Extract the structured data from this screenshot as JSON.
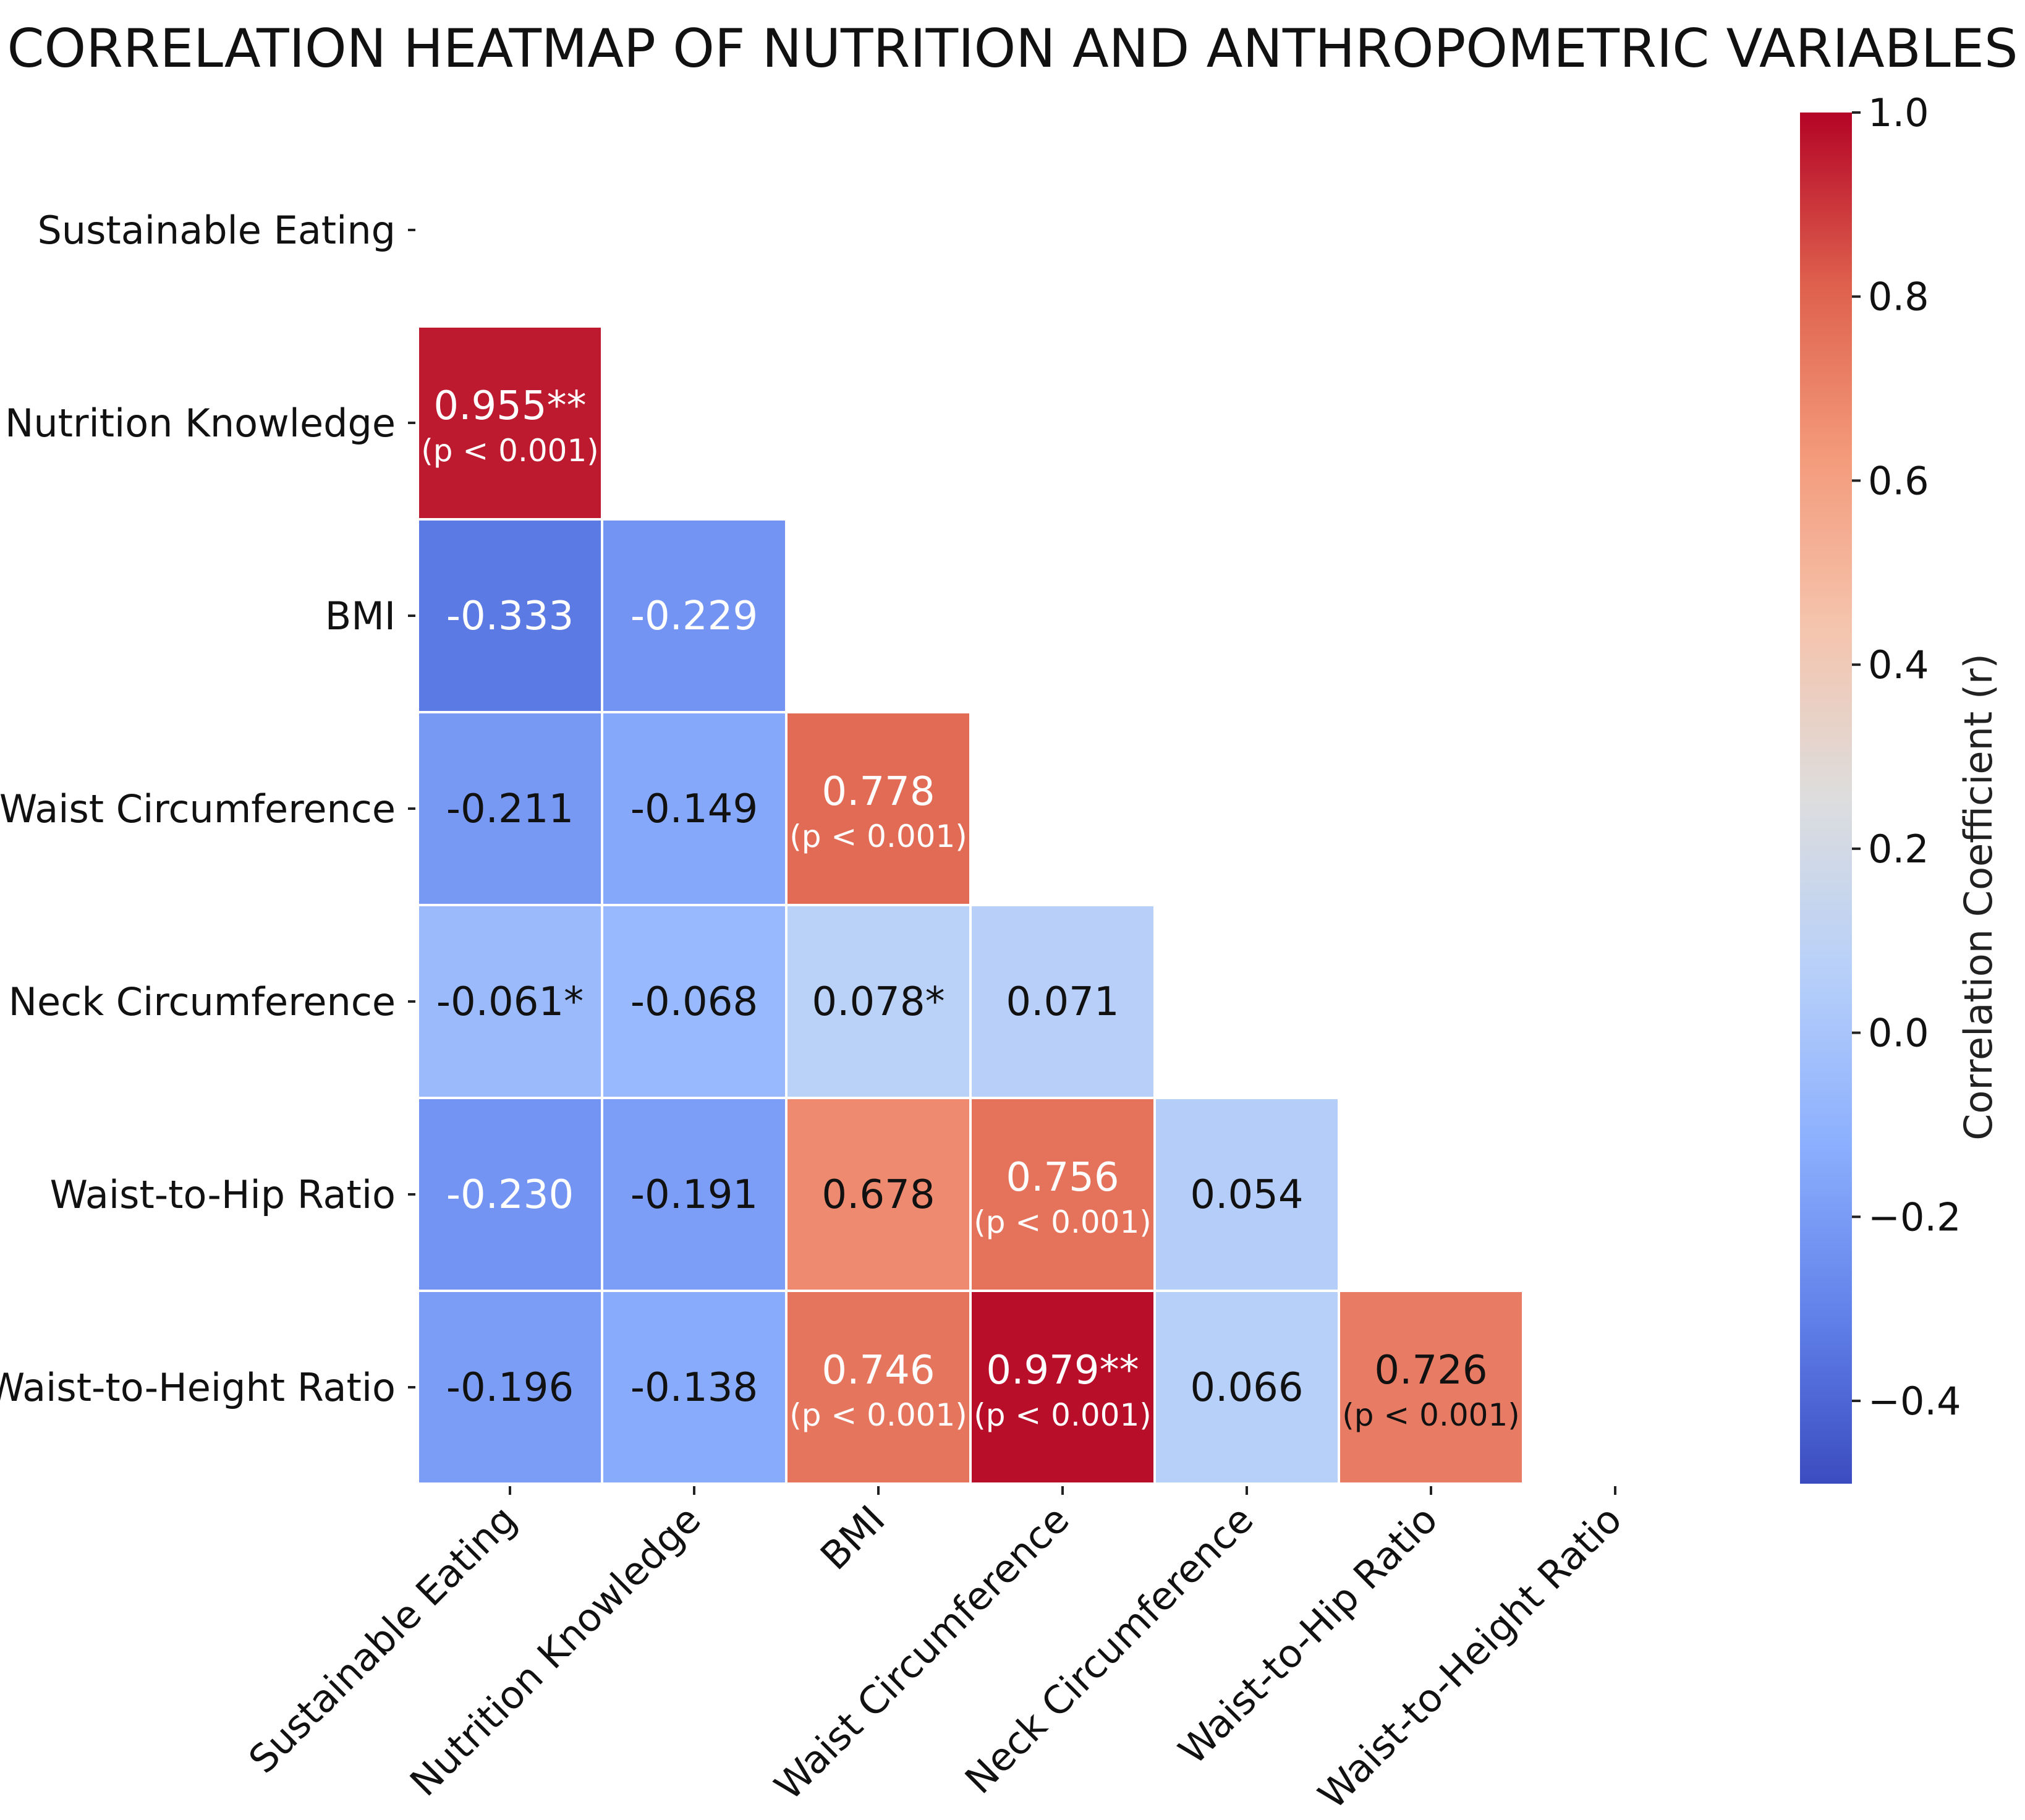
{
  "chart_data": {
    "type": "heatmap",
    "title": "CORRELATION HEATMAP OF NUTRITION AND ANTHROPOMETRIC VARIABLES",
    "variables": [
      "Sustainable Eating",
      "Nutrition Knowledge",
      "BMI",
      "Waist Circumference",
      "Neck Circumference",
      "Waist-to-Hip Ratio",
      "Waist-to-Height Ratio"
    ],
    "mask": "upper-triangle-and-diagonal",
    "cells": [
      {
        "row": 1,
        "col": 0,
        "value": 0.955,
        "label": "0.955**",
        "sublabel": "(p < 0.001)"
      },
      {
        "row": 2,
        "col": 0,
        "value": -0.333,
        "label": "-0.333",
        "sublabel": ""
      },
      {
        "row": 2,
        "col": 1,
        "value": -0.229,
        "label": "-0.229",
        "sublabel": ""
      },
      {
        "row": 3,
        "col": 0,
        "value": -0.211,
        "label": "-0.211",
        "sublabel": ""
      },
      {
        "row": 3,
        "col": 1,
        "value": -0.149,
        "label": "-0.149",
        "sublabel": ""
      },
      {
        "row": 3,
        "col": 2,
        "value": 0.778,
        "label": "0.778",
        "sublabel": "(p < 0.001)"
      },
      {
        "row": 4,
        "col": 0,
        "value": -0.061,
        "label": "-0.061*",
        "sublabel": ""
      },
      {
        "row": 4,
        "col": 1,
        "value": -0.068,
        "label": "-0.068",
        "sublabel": ""
      },
      {
        "row": 4,
        "col": 2,
        "value": 0.078,
        "label": "0.078*",
        "sublabel": ""
      },
      {
        "row": 4,
        "col": 3,
        "value": 0.071,
        "label": "0.071",
        "sublabel": ""
      },
      {
        "row": 5,
        "col": 0,
        "value": -0.23,
        "label": "-0.230",
        "sublabel": ""
      },
      {
        "row": 5,
        "col": 1,
        "value": -0.191,
        "label": "-0.191",
        "sublabel": ""
      },
      {
        "row": 5,
        "col": 2,
        "value": 0.678,
        "label": "0.678",
        "sublabel": ""
      },
      {
        "row": 5,
        "col": 3,
        "value": 0.756,
        "label": "0.756",
        "sublabel": "(p < 0.001)"
      },
      {
        "row": 5,
        "col": 4,
        "value": 0.054,
        "label": "0.054",
        "sublabel": ""
      },
      {
        "row": 6,
        "col": 0,
        "value": -0.196,
        "label": "-0.196",
        "sublabel": ""
      },
      {
        "row": 6,
        "col": 1,
        "value": -0.138,
        "label": "-0.138",
        "sublabel": ""
      },
      {
        "row": 6,
        "col": 2,
        "value": 0.746,
        "label": "0.746",
        "sublabel": "(p < 0.001)"
      },
      {
        "row": 6,
        "col": 3,
        "value": 0.979,
        "label": "0.979**",
        "sublabel": "(p < 0.001)"
      },
      {
        "row": 6,
        "col": 4,
        "value": 0.066,
        "label": "0.066",
        "sublabel": ""
      },
      {
        "row": 6,
        "col": 5,
        "value": 0.726,
        "label": "0.726",
        "sublabel": "(p < 0.001)"
      }
    ],
    "colormap": "coolwarm",
    "colorbar": {
      "label": "Correlation Coefficient (r)",
      "range": [
        -0.49,
        1.0
      ],
      "ticks": [
        1.0,
        0.8,
        0.6,
        0.4,
        0.2,
        0.0,
        -0.2,
        -0.4
      ],
      "tick_labels": [
        "1.0",
        "0.8",
        "0.6",
        "0.4",
        "0.2",
        "0.0",
        "−0.2",
        "−0.4"
      ],
      "placement": "right"
    }
  },
  "colors": {
    "blue_end": "#3b4cc0",
    "neutral": "#dddddd",
    "red_end": "#b40426",
    "cell_border": "#ffffff"
  }
}
